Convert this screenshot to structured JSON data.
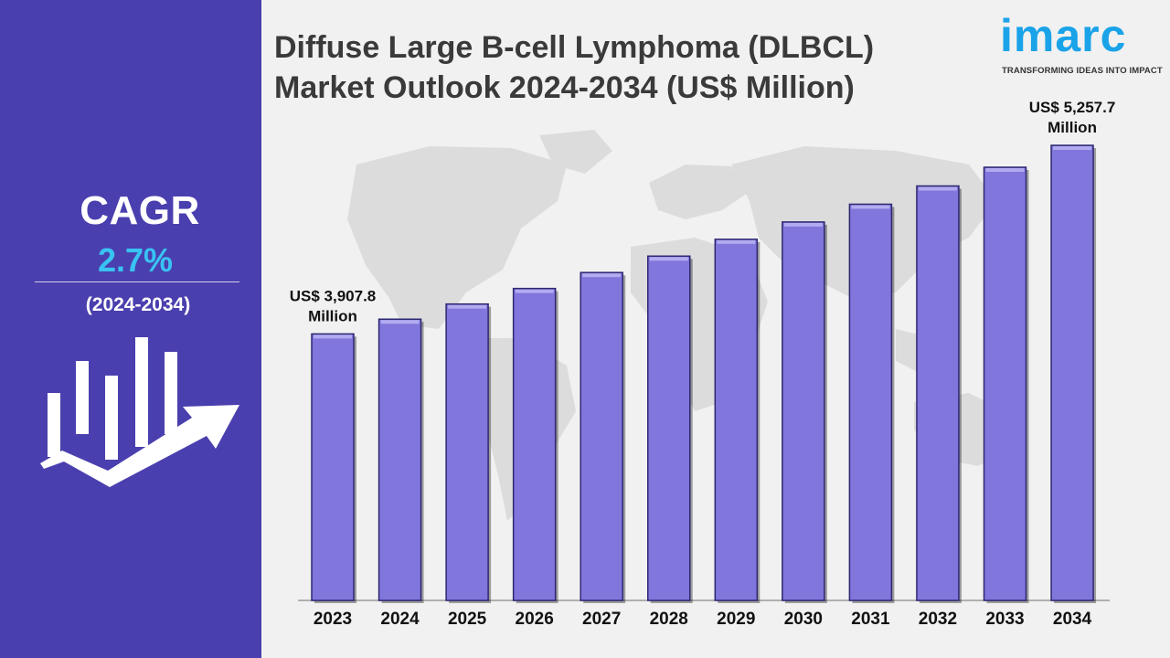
{
  "title": {
    "line1": "Diffuse Large B-cell Lymphoma (DLBCL)",
    "line2": "Market Outlook 2024-2034 (US$ Million)"
  },
  "logo": {
    "word": "imarc",
    "tagline": "TRANSFORMING IDEAS INTO IMPACT"
  },
  "sidebar": {
    "cagr_label": "CAGR",
    "cagr_value": "2.7%",
    "period": "(2024-2034)",
    "icon": "bar-growth-arrow-icon"
  },
  "colors": {
    "sidebar": "#4a3fae",
    "bar": "#8176dc",
    "cagr_value": "#39c3f2",
    "logo": "#1aa3e8"
  },
  "chart_data": {
    "type": "bar",
    "title": "Diffuse Large B-cell Lymphoma (DLBCL) Market Outlook 2024-2034 (US$ Million)",
    "categories": [
      "2023",
      "2024",
      "2025",
      "2026",
      "2027",
      "2028",
      "2029",
      "2030",
      "2031",
      "2032",
      "2033",
      "2034"
    ],
    "values": [
      3907.8,
      4013.3,
      4121.7,
      4233.0,
      4347.3,
      4464.7,
      4585.2,
      4709.0,
      4836.2,
      4966.8,
      5100.9,
      5257.7
    ],
    "ylim": [
      2000,
      5500
    ],
    "annotations": [
      {
        "category": "2023",
        "line1": "US$ 3,907.8",
        "line2": "Million"
      },
      {
        "category": "2034",
        "line1": "US$ 5,257.7",
        "line2": "Million"
      }
    ],
    "grid": false,
    "legend": "none"
  }
}
